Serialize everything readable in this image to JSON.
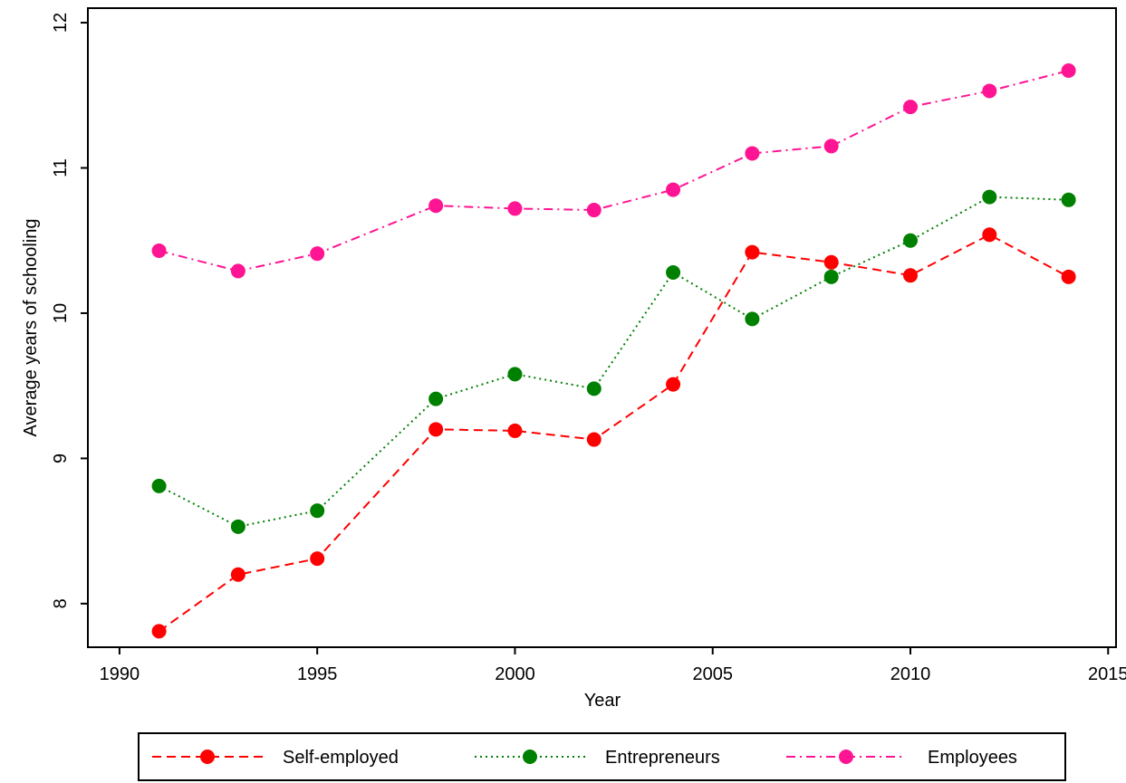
{
  "chart_data": {
    "type": "line",
    "xlabel": "Year",
    "ylabel": "Average years of schooling",
    "xlim": [
      1989.2,
      2015.2
    ],
    "ylim": [
      7.7,
      12.1
    ],
    "x_ticks": [
      1990,
      1995,
      2000,
      2005,
      2010,
      2015
    ],
    "y_ticks": [
      8,
      9,
      10,
      11,
      12
    ],
    "grid": false,
    "legend_position": "bottom",
    "series": [
      {
        "name": "Self-employed",
        "color": "#ff0000",
        "line_style": "dashed",
        "x": [
          1991,
          1993,
          1995,
          1998,
          2000,
          2002,
          2004,
          2006,
          2008,
          2010,
          2012,
          2014
        ],
        "y": [
          7.81,
          8.2,
          8.31,
          9.2,
          9.19,
          9.13,
          9.51,
          10.42,
          10.35,
          10.26,
          10.54,
          10.25
        ]
      },
      {
        "name": "Entrepreneurs",
        "color": "#008000",
        "line_style": "dotted",
        "x": [
          1991,
          1993,
          1995,
          1998,
          2000,
          2002,
          2004,
          2006,
          2008,
          2010,
          2012,
          2014
        ],
        "y": [
          8.81,
          8.53,
          8.64,
          9.41,
          9.58,
          9.48,
          10.28,
          9.96,
          10.25,
          10.5,
          10.8,
          10.78
        ]
      },
      {
        "name": "Employees",
        "color": "#ff1493",
        "line_style": "dashdot",
        "x": [
          1991,
          1993,
          1995,
          1998,
          2000,
          2002,
          2004,
          2006,
          2008,
          2010,
          2012,
          2014
        ],
        "y": [
          10.43,
          10.29,
          10.41,
          10.74,
          10.72,
          10.71,
          10.85,
          11.1,
          11.15,
          11.42,
          11.53,
          11.67
        ]
      }
    ]
  }
}
